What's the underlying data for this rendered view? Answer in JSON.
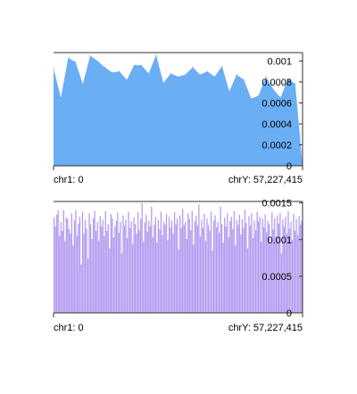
{
  "chart_data": [
    {
      "type": "area",
      "color": "#6aaef4",
      "x_start_label": "chr1: 0",
      "x_end_label": "chrY: 57,227,415",
      "ylim": [
        0,
        0.00108
      ],
      "y_ticks": [
        "0",
        "0.0002",
        "0.0004",
        "0.0006",
        "0.0008",
        "0.001"
      ],
      "y_tick_values": [
        0,
        0.0002,
        0.0004,
        0.0006,
        0.0008,
        0.001
      ],
      "values": [
        0.00093,
        0.00065,
        0.00103,
        0.00099,
        0.00078,
        0.00105,
        0.001,
        0.00094,
        0.00089,
        0.0009,
        0.00082,
        0.00096,
        0.00096,
        0.00088,
        0.00106,
        0.00079,
        0.00088,
        0.00085,
        0.00087,
        0.00094,
        0.00087,
        0.0009,
        0.00085,
        0.00095,
        0.00071,
        0.00087,
        0.00082,
        0.00064,
        0.00067,
        0.00085,
        0.00073,
        0.00065,
        0.00083,
        0.00078,
        0.0
      ]
    },
    {
      "type": "bar",
      "color": "#b39af0",
      "x_start_label": "chr1: 0",
      "x_end_label": "chrY: 57,227,415",
      "ylim": [
        0,
        0.00152
      ],
      "y_ticks": [
        "0",
        "0.0005",
        "0.001",
        "0.0015"
      ],
      "y_tick_values": [
        0,
        0.0005,
        0.001,
        0.0015
      ],
      "values": [
        0.0013,
        0.00118,
        0.00134,
        0.0014,
        0.00105,
        0.00124,
        0.00112,
        0.0014,
        0.00098,
        0.0013,
        0.00128,
        0.00115,
        0.00108,
        0.00136,
        0.00092,
        0.00126,
        0.0014,
        0.00105,
        0.00122,
        0.00131,
        0.00066,
        0.00138,
        0.00108,
        0.00127,
        0.00115,
        0.00074,
        0.00136,
        0.00121,
        0.00101,
        0.00129,
        0.00139,
        0.00112,
        0.00124,
        0.00098,
        0.00132,
        0.00118,
        0.00127,
        0.00105,
        0.00139,
        0.00112,
        0.00121,
        0.00088,
        0.00135,
        0.00129,
        0.00103,
        0.00118,
        0.00126,
        0.00137,
        0.00109,
        0.00124,
        0.00081,
        0.00133,
        0.00119,
        0.00127,
        0.00102,
        0.00138,
        0.00116,
        0.00125,
        0.00094,
        0.0013,
        0.00121,
        0.00108,
        0.00137,
        0.00113,
        0.00128,
        0.0015,
        0.00097,
        0.00123,
        0.00134,
        0.00111,
        0.00126,
        0.00118,
        0.00145,
        0.00103,
        0.0012,
        0.00131,
        0.00096,
        0.00127,
        0.00114,
        0.00138,
        0.00106,
        0.00124,
        0.0012,
        0.00135,
        0.00099,
        0.00131,
        0.00117,
        0.00126,
        0.00108,
        0.00137,
        0.00121,
        0.00129,
        0.00086,
        0.00133,
        0.00116,
        0.00142,
        0.0012,
        0.00124,
        0.00101,
        0.00136,
        0.00128,
        0.00113,
        0.00139,
        0.00093,
        0.00125,
        0.00132,
        0.00119,
        0.00148,
        0.00104,
        0.00127,
        0.00116,
        0.00135,
        0.00098,
        0.00129,
        0.0012,
        0.00112,
        0.00138,
        0.00085,
        0.00126,
        0.00133,
        0.00117,
        0.00124,
        0.00109,
        0.00145,
        0.00121,
        0.00096,
        0.0013,
        0.00118,
        0.00136,
        0.00103,
        0.00125,
        0.00131,
        0.00114,
        0.00139,
        0.00092,
        0.00127,
        0.0012,
        0.00134,
        0.00107,
        0.00128,
        0.00116,
        0.00141,
        0.00123,
        0.00088,
        0.00132,
        0.00119,
        0.00136,
        0.00102,
        0.00126,
        0.00113,
        0.00138,
        0.00125,
        0.00131,
        0.00097,
        0.00129,
        0.00117,
        0.00134,
        0.0011,
        0.00126,
        0.00121,
        0.00095,
        0.00137,
        0.00114,
        0.00129,
        0.00104,
        0.00133,
        0.00122,
        0.00136,
        0.00081,
        0.00127,
        0.00118,
        0.00131,
        0.00108,
        0.00139,
        0.00115,
        0.00124,
        0.00099,
        0.00135,
        0.00112,
        0.00128,
        0.00106,
        0.00132,
        0.0012,
        0.00126
      ]
    }
  ]
}
